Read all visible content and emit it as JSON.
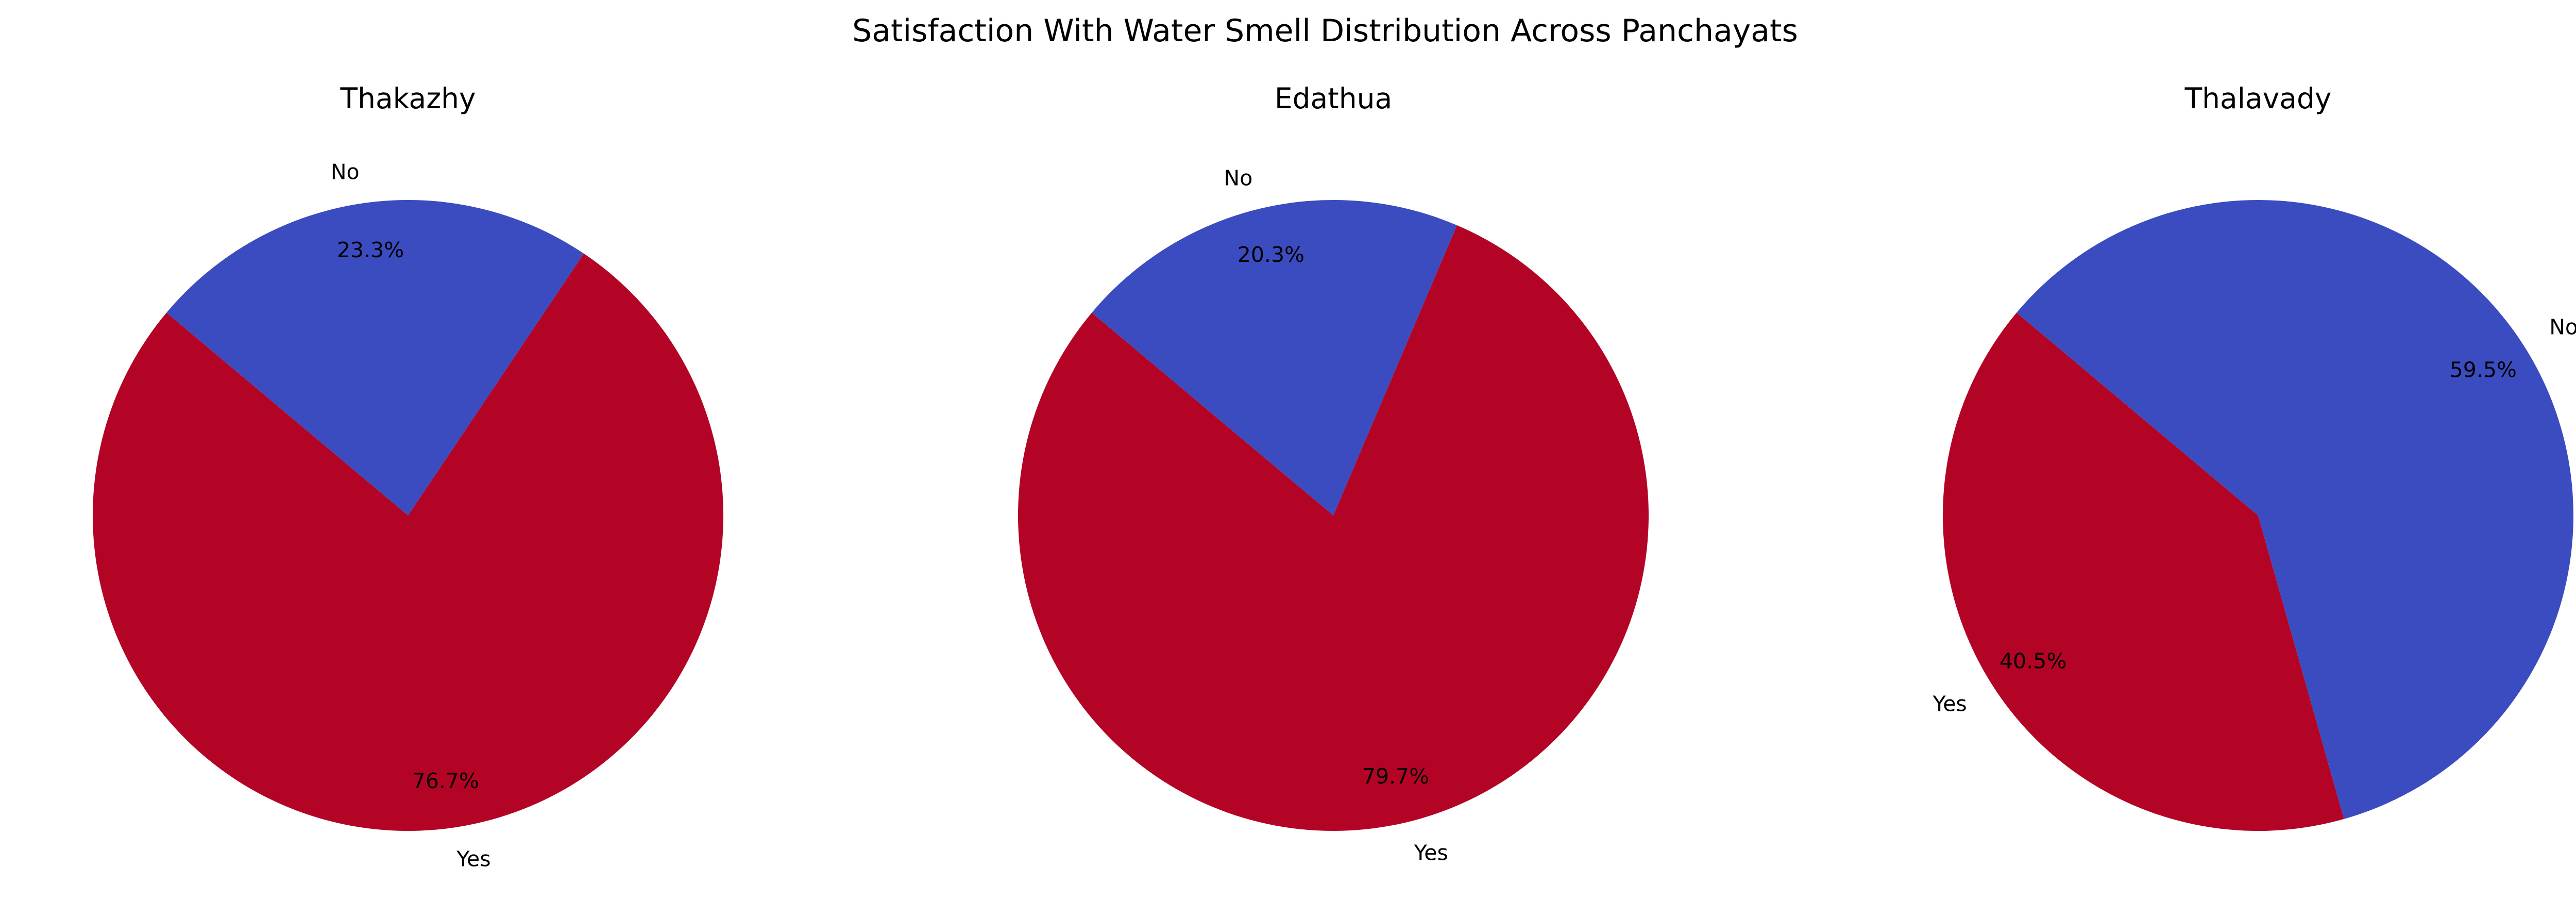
{
  "chart_data": {
    "type": "pie",
    "title": "Satisfaction With Water Smell Distribution Across Panchayats",
    "colors": {
      "No": "#3b4cc0",
      "Yes": "#b40426"
    },
    "charts": [
      {
        "title": "Thakazhy",
        "slices": [
          {
            "label": "Yes",
            "value": 76.7,
            "pct_label": "76.7%"
          },
          {
            "label": "No",
            "value": 23.3,
            "pct_label": "23.3%"
          }
        ]
      },
      {
        "title": "Edathua",
        "slices": [
          {
            "label": "Yes",
            "value": 79.7,
            "pct_label": "79.7%"
          },
          {
            "label": "No",
            "value": 20.3,
            "pct_label": "20.3%"
          }
        ]
      },
      {
        "title": "Thalavady",
        "slices": [
          {
            "label": "Yes",
            "value": 40.5,
            "pct_label": "40.5%"
          },
          {
            "label": "No",
            "value": 59.5,
            "pct_label": "59.5%"
          }
        ]
      }
    ]
  }
}
